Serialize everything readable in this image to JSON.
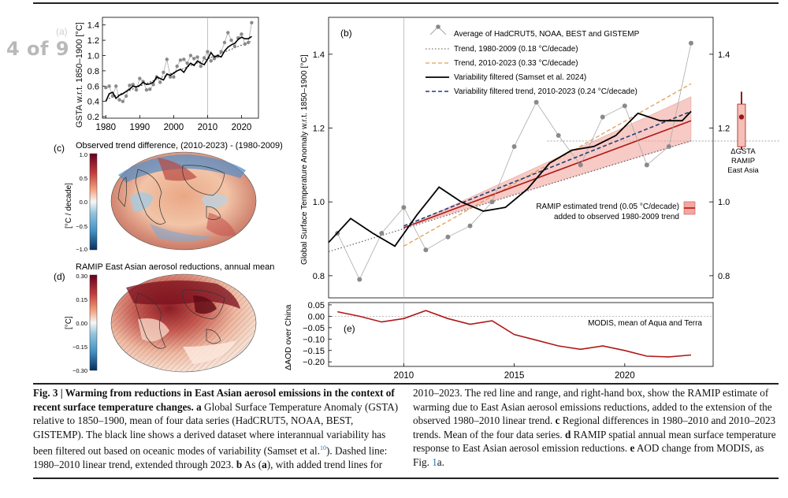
{
  "viewer": {
    "page_counter": "4 of 9"
  },
  "figure": {
    "panel_a": {
      "label": "(a)",
      "ylabel": "GSTA w.r.t. 1850–1900 [°C]",
      "xticks": [
        "1980",
        "1990",
        "2000",
        "2010",
        "2020"
      ],
      "yticks": [
        "0.2",
        "0.4",
        "0.6",
        "0.8",
        "1.0",
        "1.2",
        "1.4"
      ],
      "xlim": [
        1979,
        2025
      ],
      "ylim": [
        0.18,
        1.5
      ],
      "avg_years": [
        1980,
        1981,
        1982,
        1983,
        1984,
        1985,
        1986,
        1987,
        1988,
        1989,
        1990,
        1991,
        1992,
        1993,
        1994,
        1995,
        1996,
        1997,
        1998,
        1999,
        2000,
        2001,
        2002,
        2003,
        2004,
        2005,
        2006,
        2007,
        2008,
        2009,
        2010,
        2011,
        2012,
        2013,
        2014,
        2015,
        2016,
        2017,
        2018,
        2019,
        2020,
        2021,
        2022,
        2023
      ],
      "avg_values": [
        0.58,
        0.6,
        0.47,
        0.6,
        0.42,
        0.4,
        0.47,
        0.61,
        0.62,
        0.55,
        0.7,
        0.66,
        0.55,
        0.56,
        0.62,
        0.72,
        0.65,
        0.78,
        0.95,
        0.72,
        0.72,
        0.86,
        0.94,
        0.95,
        0.9,
        1.0,
        0.96,
        0.98,
        0.86,
        0.97,
        1.05,
        0.93,
        0.96,
        0.99,
        1.05,
        1.17,
        1.3,
        1.2,
        1.12,
        1.23,
        1.28,
        1.15,
        1.17,
        1.43
      ],
      "filt_years": [
        1980,
        1981,
        1982,
        1983,
        1984,
        1985,
        1986,
        1987,
        1988,
        1989,
        1990,
        1991,
        1992,
        1993,
        1994,
        1995,
        1996,
        1997,
        1998,
        1999,
        2000,
        2001,
        2002,
        2003,
        2004,
        2005,
        2006,
        2007,
        2008,
        2009,
        2010,
        2011,
        2012,
        2013,
        2014,
        2015,
        2016,
        2017,
        2018,
        2019,
        2020,
        2021,
        2022,
        2023
      ],
      "filt_values": [
        0.4,
        0.5,
        0.52,
        0.44,
        0.48,
        0.5,
        0.53,
        0.56,
        0.6,
        0.59,
        0.61,
        0.65,
        0.62,
        0.63,
        0.65,
        0.72,
        0.7,
        0.68,
        0.76,
        0.74,
        0.77,
        0.8,
        0.82,
        0.78,
        0.85,
        0.9,
        0.87,
        0.93,
        0.9,
        0.88,
        0.95,
        1.04,
        0.98,
        1.0,
        0.98,
        1.06,
        1.11,
        1.14,
        1.16,
        1.21,
        1.24,
        1.22,
        1.22,
        1.25
      ],
      "trend_start": [
        1980,
        0.42
      ],
      "trend_end": [
        2023,
        1.19
      ],
      "vline_year": 2010
    },
    "panel_b": {
      "label": "(b)",
      "ylabel": "Global Surface Temperature Anomaly w.r.t. 1850–1900 [°C]",
      "yticks": [
        "0.8",
        "1.0",
        "1.2",
        "1.4"
      ],
      "right_yticks": [
        "0.8",
        "1.0",
        "1.2",
        "1.4"
      ],
      "xlim": [
        2006.6,
        2024.0
      ],
      "ylim": [
        0.74,
        1.5
      ],
      "vline_year": 2010,
      "hline_value": 1.165,
      "legend": [
        {
          "label": "Average of HadCRUT5, NOAA, BEST and GISTEMP",
          "color": "#888888",
          "style": "marker"
        },
        {
          "label": "Trend, 1980-2009 (0.18 °C/decade)",
          "color": "#555555",
          "style": "dotted"
        },
        {
          "label": "Trend, 2010-2023 (0.33 °C/decade)",
          "color": "#e0a050",
          "style": "dashed"
        },
        {
          "label": "Variability filtered (Samset et al. 2024)",
          "color": "#000000",
          "style": "solid"
        },
        {
          "label": "Variability filtered trend, 2010-2023 (0.24 °C/decade)",
          "color": "#1f3f7a",
          "style": "dashed"
        }
      ],
      "ramip_legend": [
        "RAMIP estimated trend (0.05 °C/decade)",
        "added to observed 1980-2009 trend"
      ],
      "avg_years": [
        2007,
        2008,
        2009,
        2010,
        2011,
        2012,
        2013,
        2014,
        2015,
        2016,
        2017,
        2018,
        2019,
        2020,
        2021,
        2022,
        2023
      ],
      "avg_values": [
        0.915,
        0.79,
        0.915,
        0.985,
        0.87,
        0.905,
        0.935,
        1.0,
        1.15,
        1.27,
        1.18,
        1.1,
        1.23,
        1.26,
        1.1,
        1.15,
        1.43
      ],
      "filt_years": [
        2006.6,
        2007.6,
        2008.6,
        2009.6,
        2010.6,
        2011.6,
        2012.6,
        2013.6,
        2014.6,
        2015.6,
        2016.6,
        2017.6,
        2018.6,
        2019.6,
        2020.6,
        2021.6,
        2022.6,
        2023.0
      ],
      "filt_values": [
        0.89,
        0.955,
        0.915,
        0.88,
        0.965,
        1.04,
        1.0,
        0.975,
        0.985,
        1.035,
        1.105,
        1.14,
        1.15,
        1.18,
        1.24,
        1.22,
        1.22,
        1.245
      ],
      "trend_8009": {
        "start": [
          2006.6,
          0.865
        ],
        "end": [
          2023.0,
          1.165
        ]
      },
      "trend_1023": {
        "start": [
          2010.0,
          0.88
        ],
        "end": [
          2023.0,
          1.32
        ]
      },
      "filt_trend_1023": {
        "start": [
          2010.0,
          0.935
        ],
        "end": [
          2023.0,
          1.245
        ]
      },
      "ramip": {
        "start": [
          2010.0,
          0.93
        ],
        "end": [
          2023.0,
          1.22
        ],
        "band_end": [
          1.165,
          1.285
        ]
      },
      "box_label": [
        "ΔGSTA",
        "RAMIP",
        "East Asia"
      ],
      "box": {
        "center": 1.23,
        "q_low": 1.175,
        "q_high": 1.265,
        "w_low": 1.15,
        "w_high": 1.29
      }
    },
    "panel_e": {
      "label": "(e)",
      "ylabel": "ΔAOD over China",
      "yticks": [
        "0.05",
        "0.00",
        "−0.05",
        "−0.10",
        "−0.15",
        "−0.20"
      ],
      "xticks": [
        "2010",
        "2015",
        "2020"
      ],
      "legend": "MODIS, mean of Aqua and Terra",
      "ylim": [
        -0.22,
        0.06
      ],
      "years": [
        2007,
        2008,
        2009,
        2010,
        2011,
        2012,
        2013,
        2014,
        2015,
        2016,
        2017,
        2018,
        2019,
        2020,
        2021,
        2022,
        2023
      ],
      "values": [
        0.02,
        0.0,
        -0.025,
        -0.01,
        0.025,
        -0.01,
        -0.035,
        -0.02,
        -0.08,
        -0.105,
        -0.13,
        -0.145,
        -0.13,
        -0.15,
        -0.175,
        -0.178,
        -0.17
      ]
    },
    "panel_c": {
      "label": "(c)",
      "title": "Observed trend difference, (2010-2023) - (1980-2009)",
      "colorbar_label": "[°C / decade]",
      "colorbar_ticks": [
        "1.0",
        "0.5",
        "0.0",
        "−0.5",
        "−1.0"
      ]
    },
    "panel_d": {
      "label": "(d)",
      "title": "RAMIP East Asian aerosol reductions, annual mean",
      "colorbar_label": "[°C]",
      "colorbar_ticks": [
        "0.30",
        "0.15",
        "0.00",
        "−0.15",
        "−0.30"
      ]
    }
  },
  "caption": {
    "fig_label": "Fig. 3 | Warming from reductions in East Asian aerosol emissions in the context of recent surface temperature changes.",
    "a_letter": "a",
    "a_text": " Global Surface Temperature Anomaly (GSTA) relative to 1850–1900, mean of four data series (HadCRUT5, NOAA, BEST, GISTEMP). The black line shows a derived dataset where interannual variability has been filtered out based on oceanic modes of variability (Samset et al.",
    "a_cite": "10",
    "a_text2": "). Dashed line: 1980–2010 linear trend, extended through 2023.",
    "b_letter": "b",
    "b_text": " As (",
    "b_ref": "a",
    "b_text2": "), with added trend lines for 2010–2023. The red line and range, and right-hand box, show the RAMIP estimate of warming due to East Asian aerosol emissions reductions, added to the extension of the observed 1980–2010 linear trend.",
    "c_letter": "c",
    "c_text": " Regional differences in 1980–2010 and 2010–2023 trends. Mean of the four data series.",
    "d_letter": "d",
    "d_text": " RAMIP spatial annual mean surface temperature response to East Asian aerosol emission reductions.",
    "e_letter": "e",
    "e_text": " AOD change from MODIS, as Fig. ",
    "e_cite": "1",
    "e_text2": "a."
  }
}
